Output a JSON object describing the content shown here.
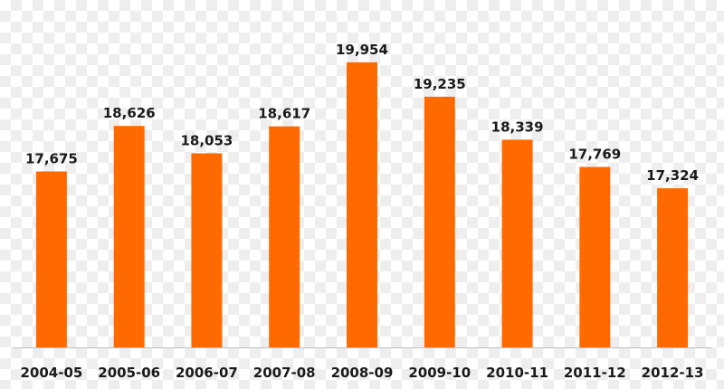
{
  "chart_data": {
    "type": "bar",
    "categories": [
      "2004-05",
      "2005-06",
      "2006-07",
      "2007-08",
      "2008-09",
      "2009-10",
      "2010-11",
      "2011-12",
      "2012-13"
    ],
    "values": [
      17675,
      18626,
      18053,
      18617,
      19954,
      19235,
      18339,
      17769,
      17324
    ],
    "data_labels": [
      "17,675",
      "18,626",
      "18,053",
      "18,617",
      "19,954",
      "19,235",
      "18,339",
      "17,769",
      "17,324"
    ],
    "title": "",
    "xlabel": "",
    "ylabel": "",
    "ylim": [
      14000,
      20500
    ],
    "grid": false,
    "legend": "none",
    "colors": {
      "bar": "#ff6a00",
      "axis": "#bfbfbf",
      "text": "#1a1a1a"
    }
  }
}
